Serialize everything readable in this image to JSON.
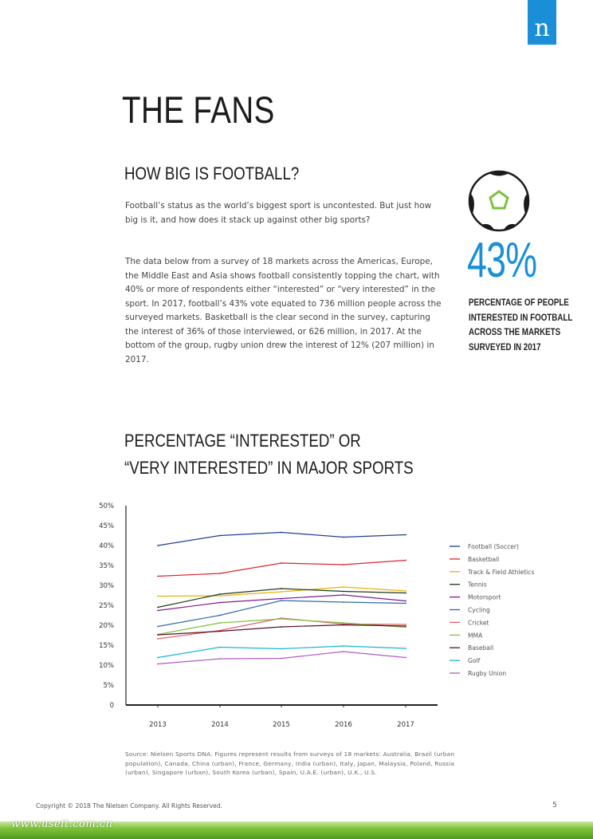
{
  "page": {
    "logo": "n",
    "title": "THE FANS",
    "subtitle": "HOW BIG IS FOOTBALL?",
    "paragraph1": "Football’s status as the world’s biggest sport is uncontested. But just how big is it, and how does it stack up against other big sports?",
    "paragraph2": "The data below from a survey of 18 markets across the Americas, Europe, the Middle East and Asia shows football consistently topping the chart, with 40% or more of respondents either “interested” or “very interested” in the sport. In 2017, football’s 43% vote equated to 736 million people across the surveyed markets. Basketball is the clear second in the survey, capturing the interest of 36% of those interviewed, or 626 million, in 2017. At the bottom of the group, rugby union drew the interest of 12% (207 million) in 2017.",
    "stat_value": "43%",
    "stat_caption_lines": [
      "PERCENTAGE OF PEOPLE",
      "INTERESTED IN FOOTBALL",
      "ACROSS THE MARKETS",
      "SURVEYED IN 2017"
    ],
    "chart_title_lines": [
      "PERCENTAGE “INTERESTED” OR",
      "“VERY INTERESTED” IN MAJOR SPORTS"
    ],
    "source": "Source: Nielsen Sports DNA. Figures represent results from surveys of 18 markets: Australia, Brazil (urban population), Canada, China (urban), France, Germany, India (urban), Italy, Japan, Malaysia, Poland, Russia (urban), Singapore (urban), South Korea (urban), Spain, U.A.E. (urban), U.K., U.S.",
    "copyright": "Copyright © 2018 The Nielsen Company. All Rights Reserved.",
    "page_number": "5",
    "watermark": "www.useit.com.cn",
    "accent_color": "#1a8fd8",
    "ball_accent_color": "#7dc142"
  },
  "chart_data": {
    "type": "line",
    "x": [
      "2013",
      "2014",
      "2015",
      "2016",
      "2017"
    ],
    "y_ticks": [
      "0",
      "5%",
      "10%",
      "15%",
      "20%",
      "25%",
      "30%",
      "35%",
      "40%",
      "45%",
      "50%"
    ],
    "ylim": [
      0,
      50
    ],
    "legend_position": "right",
    "grid": false,
    "series": [
      {
        "name": "Football (Soccer)",
        "color": "#1f3f8f",
        "values": [
          40,
          42.5,
          43.3,
          42.1,
          42.7
        ]
      },
      {
        "name": "Basketball",
        "color": "#d7262e",
        "values": [
          32.3,
          33,
          35.6,
          35.2,
          36.3
        ]
      },
      {
        "name": "Track & Field Athletics",
        "color": "#e8b400",
        "values": [
          27.3,
          27.4,
          28.4,
          29.6,
          28.6
        ]
      },
      {
        "name": "Tennis",
        "color": "#1f3a1a",
        "values": [
          24.5,
          27.8,
          29.2,
          28.5,
          28.1
        ]
      },
      {
        "name": "Motorsport",
        "color": "#7f1c8f",
        "values": [
          23.7,
          25.7,
          26.7,
          27.6,
          26.1
        ]
      },
      {
        "name": "Cycling",
        "color": "#2f6aa8",
        "values": [
          19.7,
          22.5,
          26.2,
          25.8,
          25.5
        ]
      },
      {
        "name": "Cricket",
        "color": "#e0616a",
        "values": [
          16.6,
          18.7,
          21.8,
          20.3,
          20.2
        ]
      },
      {
        "name": "MMA",
        "color": "#7dc142",
        "values": [
          17.7,
          20.6,
          21.6,
          20.6,
          19.5
        ]
      },
      {
        "name": "Baseball",
        "color": "#5a1020",
        "values": [
          17.6,
          18.5,
          19.6,
          20.1,
          19.8
        ]
      },
      {
        "name": "Golf",
        "color": "#19b6cf",
        "values": [
          11.9,
          14.5,
          14.1,
          14.8,
          14.2
        ]
      },
      {
        "name": "Rugby Union",
        "color": "#b25bbd",
        "values": [
          10.3,
          11.6,
          11.7,
          13.4,
          11.9
        ]
      }
    ]
  }
}
